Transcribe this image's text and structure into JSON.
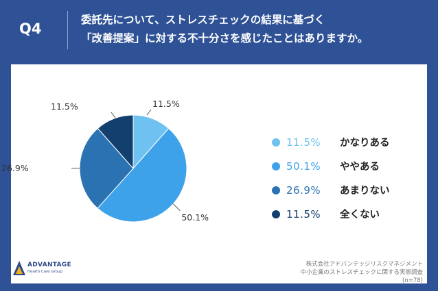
{
  "header": {
    "q_label": "Q4",
    "question_line1": "委託先について、ストレスチェックの結果に基づく",
    "question_line2": "「改善提案」に対する不十分さを感じたことはありますか。"
  },
  "chart_data": {
    "type": "pie",
    "title": "",
    "slices": [
      {
        "label": "かなりある",
        "value": 11.5,
        "value_text": "11.5%",
        "color": "#6ec1f0"
      },
      {
        "label": "ややある",
        "value": 50.1,
        "value_text": "50.1%",
        "color": "#3ea2ea"
      },
      {
        "label": "あまりない",
        "value": 26.9,
        "value_text": "26.9%",
        "color": "#2b72b3"
      },
      {
        "label": "全くない",
        "value": 11.5,
        "value_text": "11.5%",
        "color": "#123f6e"
      }
    ]
  },
  "footer": {
    "logo_name": "ADVANTAGE",
    "logo_sub": "Health Care Group",
    "source_line1": "株式会社アドバンテッジリスクマネジメント",
    "source_line2": "中小企業のストレスチェックに関する実態調査",
    "source_line3": "(n=78)"
  }
}
